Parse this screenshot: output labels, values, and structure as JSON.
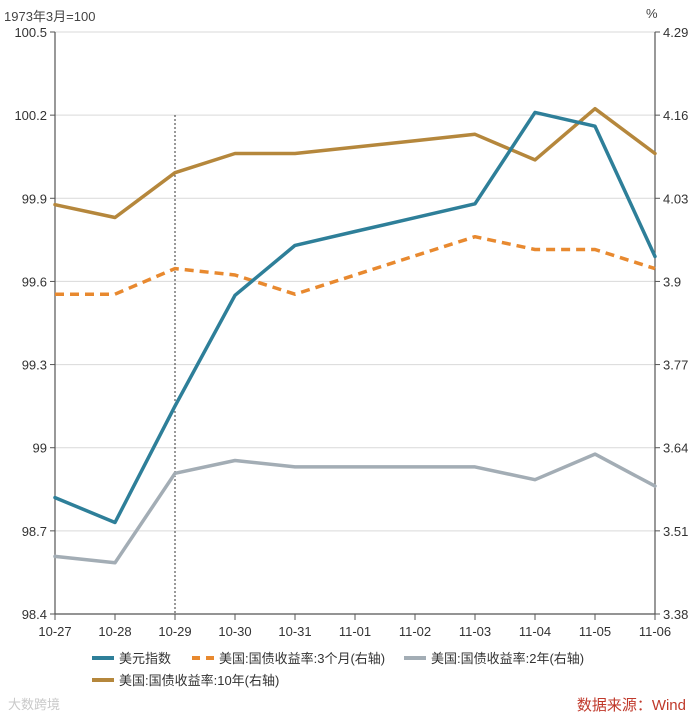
{
  "left_unit": "1973年3月=100",
  "right_unit": "%",
  "source": "数据来源：Wind",
  "watermark": "大数跨境",
  "colors": {
    "dxy": "#2e7f99",
    "t3m": "#e8892f",
    "t2y": "#a3adb5",
    "t10y": "#b5873c",
    "axis": "#555555",
    "grid": "#d9d9d9"
  },
  "chart_data": {
    "type": "line",
    "title": "",
    "categories": [
      "10-27",
      "10-28",
      "10-29",
      "10-30",
      "10-31",
      "11-01",
      "11-02",
      "11-03",
      "11-04",
      "11-05",
      "11-06"
    ],
    "y_left": {
      "label": "1973年3月=100",
      "ylim": [
        98.4,
        100.5
      ],
      "ticks": [
        "98.4",
        "98.7",
        "99",
        "99.3",
        "99.6",
        "99.9",
        "100.2",
        "100.5"
      ]
    },
    "y_right": {
      "label": "%",
      "ylim": [
        3.38,
        4.29
      ],
      "ticks": [
        "3.38",
        "3.51",
        "3.64",
        "3.77",
        "3.9",
        "4.03",
        "4.16",
        "4.29"
      ]
    },
    "marker_line": "10-29",
    "series": [
      {
        "key": "dxy",
        "name": "美元指数",
        "axis": "left",
        "style": "solid",
        "values": [
          98.82,
          98.73,
          99.15,
          99.55,
          99.73,
          99.78,
          99.83,
          99.88,
          100.21,
          100.16,
          99.69
        ]
      },
      {
        "key": "t3m",
        "name": "美国:国债收益率:3个月(右轴)",
        "axis": "right",
        "style": "dashed",
        "values": [
          3.88,
          3.88,
          3.92,
          3.91,
          3.88,
          3.91,
          3.94,
          3.97,
          3.95,
          3.95,
          3.92
        ]
      },
      {
        "key": "t2y",
        "name": "美国:国债收益率:2年(右轴)",
        "axis": "right",
        "style": "solid",
        "values": [
          3.47,
          3.46,
          3.6,
          3.62,
          3.61,
          3.61,
          3.61,
          3.61,
          3.59,
          3.63,
          3.58
        ]
      },
      {
        "key": "t10y",
        "name": "美国:国债收益率:10年(右轴)",
        "axis": "right",
        "style": "solid",
        "values": [
          4.02,
          4.0,
          4.07,
          4.1,
          4.1,
          4.11,
          4.12,
          4.13,
          4.09,
          4.17,
          4.1
        ]
      }
    ]
  }
}
